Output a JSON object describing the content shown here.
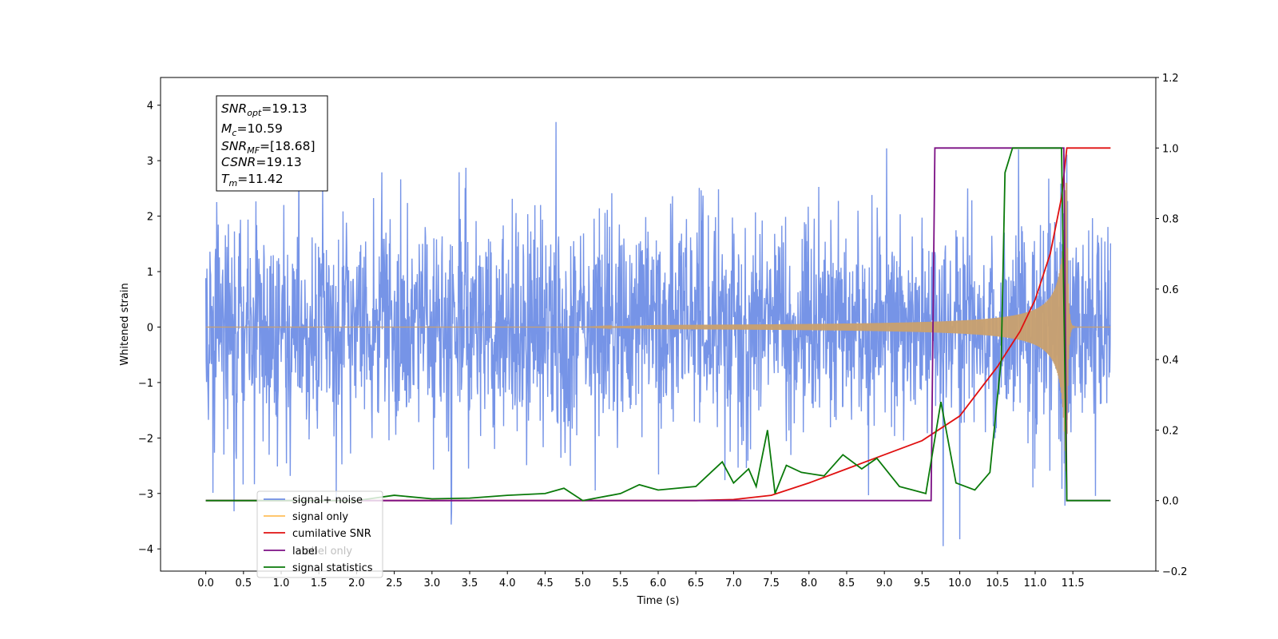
{
  "chart_data": {
    "type": "line",
    "xlabel": "Time (s)",
    "ylabel_left": "Whitened strain",
    "ylabel_right": "",
    "xlim": [
      -0.6,
      12.6
    ],
    "ylim_left": [
      -4.4,
      4.5
    ],
    "ylim_right": [
      -0.2,
      1.2
    ],
    "x_ticks": [
      "0.0",
      "0.5",
      "1.0",
      "1.5",
      "2.0",
      "2.5",
      "3.0",
      "3.5",
      "4.0",
      "4.5",
      "5.0",
      "5.5",
      "6.0",
      "6.5",
      "7.0",
      "7.5",
      "8.0",
      "8.5",
      "9.0",
      "9.5",
      "10.0",
      "10.5",
      "11.0",
      "11.5"
    ],
    "y_ticks_left": [
      "4",
      "3",
      "2",
      "1",
      "0",
      "−1",
      "−2",
      "−3",
      "−4"
    ],
    "y_ticks_right": [
      "1.2",
      "1.0",
      "0.8",
      "0.6",
      "0.4",
      "0.2",
      "0.0",
      "−0.2"
    ],
    "grid": false,
    "legend_position": "lower-left",
    "stats_box": {
      "snr_opt": "19.13",
      "mc": "10.59",
      "snr_mf": "[18.68]",
      "csnr": "19.13",
      "tm": "11.42"
    },
    "series": [
      {
        "name": "signal+ noise",
        "axis": "left",
        "color": "#6f8ee6",
        "description_values": {
          "x_start": 0.0,
          "x_end": 12.0,
          "amplitude_typical": 2.2,
          "peak_max": 4.0,
          "peak_min": -3.9,
          "burst_envelope_start": 7.0,
          "burst_end": 11.42
        }
      },
      {
        "name": "signal only",
        "axis": "left",
        "color": "#ffbf5a",
        "description_values": {
          "x_start": 0.0,
          "x_end": 12.0,
          "chirp_start": 6.5,
          "merger_time": 11.42,
          "peak_amplitude": 2.6
        }
      },
      {
        "name": "cumilative SNR",
        "axis": "right",
        "color": "#e01010",
        "points": [
          [
            0.0,
            0.0
          ],
          [
            6.5,
            0.0
          ],
          [
            7.0,
            0.003
          ],
          [
            7.5,
            0.015
          ],
          [
            8.0,
            0.05
          ],
          [
            8.5,
            0.09
          ],
          [
            9.0,
            0.13
          ],
          [
            9.5,
            0.17
          ],
          [
            10.0,
            0.24
          ],
          [
            10.5,
            0.38
          ],
          [
            10.8,
            0.48
          ],
          [
            11.0,
            0.57
          ],
          [
            11.2,
            0.7
          ],
          [
            11.35,
            0.86
          ],
          [
            11.42,
            1.0
          ],
          [
            12.0,
            1.0
          ]
        ]
      },
      {
        "name": "label",
        "axis": "right",
        "color": "#7b0f84",
        "points": [
          [
            0.0,
            0.0
          ],
          [
            9.62,
            0.0
          ],
          [
            9.67,
            1.0
          ],
          [
            11.38,
            1.0
          ],
          [
            11.42,
            0.0
          ],
          [
            12.0,
            0.0
          ]
        ]
      },
      {
        "name": "label only",
        "axis": "right",
        "color": "#7b0f84"
      },
      {
        "name": "signal statistics",
        "axis": "right",
        "color": "#0a7a0a",
        "points": [
          [
            0.0,
            0.0
          ],
          [
            2.0,
            0.0
          ],
          [
            2.5,
            0.015
          ],
          [
            3.0,
            0.005
          ],
          [
            3.5,
            0.007
          ],
          [
            4.0,
            0.015
          ],
          [
            4.5,
            0.02
          ],
          [
            4.75,
            0.035
          ],
          [
            5.0,
            0.0
          ],
          [
            5.5,
            0.02
          ],
          [
            5.75,
            0.045
          ],
          [
            6.0,
            0.03
          ],
          [
            6.5,
            0.04
          ],
          [
            6.85,
            0.11
          ],
          [
            7.0,
            0.05
          ],
          [
            7.2,
            0.09
          ],
          [
            7.3,
            0.04
          ],
          [
            7.45,
            0.2
          ],
          [
            7.55,
            0.02
          ],
          [
            7.7,
            0.1
          ],
          [
            7.9,
            0.08
          ],
          [
            8.2,
            0.07
          ],
          [
            8.45,
            0.13
          ],
          [
            8.7,
            0.09
          ],
          [
            8.9,
            0.12
          ],
          [
            9.2,
            0.04
          ],
          [
            9.55,
            0.02
          ],
          [
            9.75,
            0.28
          ],
          [
            9.95,
            0.05
          ],
          [
            10.2,
            0.03
          ],
          [
            10.4,
            0.08
          ],
          [
            10.55,
            0.4
          ],
          [
            10.6,
            0.93
          ],
          [
            10.7,
            1.0
          ],
          [
            11.35,
            1.0
          ],
          [
            11.42,
            0.0
          ],
          [
            12.0,
            0.0
          ]
        ]
      }
    ]
  }
}
